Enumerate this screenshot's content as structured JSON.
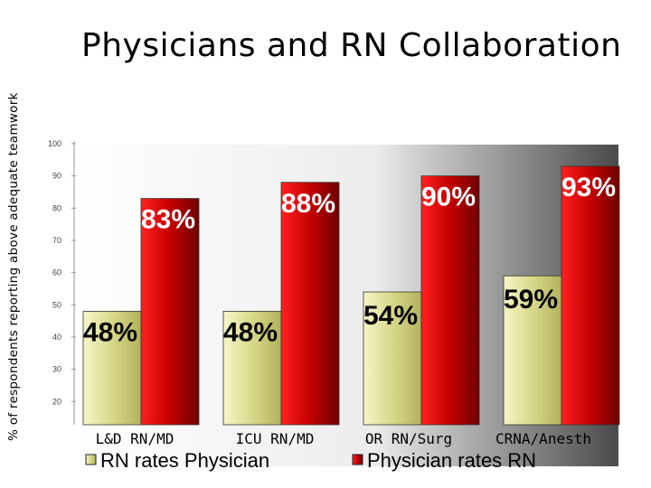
{
  "chart_data": {
    "type": "bar",
    "title": "Physicians and RN Collaboration",
    "ylabel": "% of respondents reporting above adequate teamwork",
    "xlabel": "",
    "ylim": [
      10,
      100
    ],
    "yticks": [
      20,
      30,
      40,
      50,
      60,
      70,
      80,
      90,
      100
    ],
    "categories": [
      "L&D RN/MD",
      "ICU   RN/MD",
      "OR RN/Surg",
      "CRNA/Anesth"
    ],
    "series": [
      {
        "name": "RN rates Physician",
        "values": [
          48,
          48,
          54,
          59
        ],
        "labels": [
          "48%",
          "48%",
          "54%",
          "59%"
        ],
        "color": "#dede8a"
      },
      {
        "name": "Physician rates RN",
        "values": [
          83,
          88,
          90,
          93
        ],
        "labels": [
          "83%",
          "88%",
          "90%",
          "93%"
        ],
        "color": "#c00000"
      }
    ],
    "legend_position": "bottom",
    "grid": false
  }
}
